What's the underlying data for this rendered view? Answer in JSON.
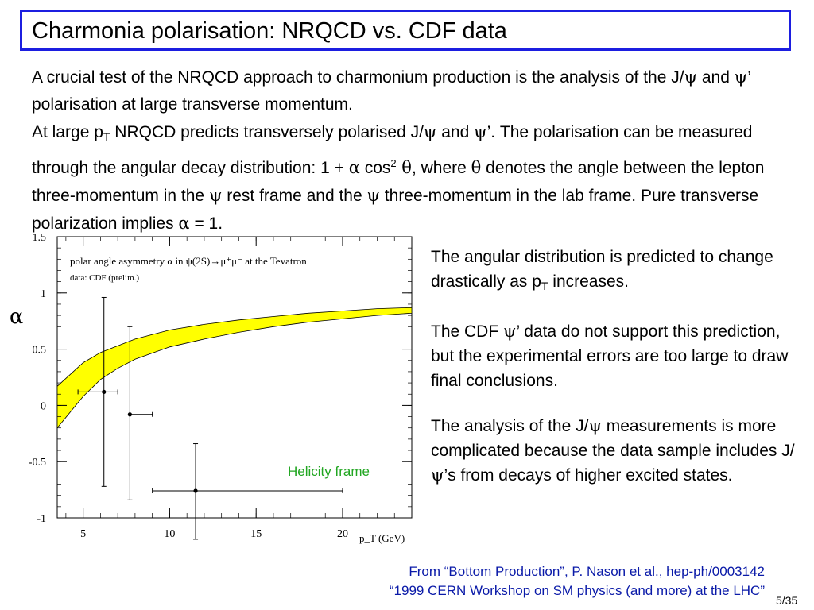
{
  "slide": {
    "title": "Charmonia polarisation: NRQCD vs. CDF data",
    "page_number": "5/35"
  },
  "intro": {
    "p1_a": "A crucial test of the NRQCD approach to charmonium production is the analysis of the J/",
    "p1_psi": "ψ",
    "p1_b": " and ",
    "p1_psi2": "ψ",
    "p1_c": "’ polarisation at large transverse momentum.",
    "p2_a": "At large p",
    "p2_sub": "T",
    "p2_b": " NRQCD predicts transversely polarised J/",
    "p2_psi": "ψ",
    "p2_c": " and ",
    "p2_psi2": "ψ",
    "p2_d": "’. The polarisation can be measured through the angular decay distribution: 1 + ",
    "p2_alpha": "α",
    "p2_e": " cos",
    "p2_sup": "2",
    "p2_theta": " θ",
    "p2_f": ", where ",
    "p2_theta2": "θ",
    "p2_g": " denotes the angle between the lepton three-momentum in the ",
    "p2_psi3": "ψ",
    "p2_h": " rest frame and the ",
    "p2_psi4": "ψ",
    "p2_i": " three-momentum in the lab frame. Pure transverse polarization implies ",
    "p2_alpha2": "α",
    "p2_j": " = 1."
  },
  "right_text": {
    "para1_a": "The angular distribution is predicted to change drastically as p",
    "para1_sub": "T",
    "para1_b": " increases.",
    "para2_a": "The CDF ",
    "para2_psi": "ψ",
    "para2_b": "’ data do not support this prediction, but the experimental errors are too large to draw final conclusions.",
    "para3_a": "The analysis of the J/",
    "para3_psi": "ψ",
    "para3_b": " measurements is more complicated because the data sample includes J/",
    "para3_psi2": "ψ",
    "para3_c": "’s from decays of higher excited states."
  },
  "credits": {
    "line1": "From “Bottom Production”, P. Nason et al., hep-ph/0003142",
    "line2": "“1999 CERN Workshop on SM physics (and more) at the LHC”"
  },
  "chart_data": {
    "type": "line",
    "title": "polar angle asymmetry α in ψ(2S)→μ⁺μ⁻ at the Tevatron",
    "subtitle": "data: CDF (prelim.)",
    "xlabel": "p_T (GeV)",
    "ylabel": "α",
    "xlim": [
      3.5,
      24
    ],
    "ylim": [
      -1.0,
      1.5
    ],
    "xticks": [
      5,
      10,
      15,
      20
    ],
    "yticks": [
      1.5,
      1,
      0.5,
      0,
      -0.5,
      -1
    ],
    "ytick_labels": [
      "1.5",
      "1",
      "0.5",
      "0",
      "-0.5",
      "-1"
    ],
    "xtick_labels": [
      "5",
      "10",
      "15",
      "20"
    ],
    "annotation": "Helicity frame",
    "annotation_color": "#21a621",
    "band_color": "#ffff00",
    "band": {
      "x": [
        3.5,
        5,
        6,
        7,
        8,
        10,
        12,
        14,
        16,
        18,
        20,
        22,
        24
      ],
      "upper": [
        0.17,
        0.38,
        0.47,
        0.53,
        0.59,
        0.67,
        0.72,
        0.76,
        0.79,
        0.82,
        0.84,
        0.86,
        0.87
      ],
      "lower": [
        -0.2,
        0.08,
        0.23,
        0.33,
        0.41,
        0.52,
        0.59,
        0.65,
        0.7,
        0.74,
        0.77,
        0.8,
        0.82
      ]
    },
    "series": [
      {
        "x": [
          6.2,
          7.7,
          11.5
        ],
        "y": [
          0.12,
          -0.08,
          -0.76
        ],
        "xerr_low": [
          1.5,
          0.0,
          2.5
        ],
        "xerr_high": [
          0.8,
          1.3,
          8.5
        ],
        "yerr_low": [
          0.84,
          0.76,
          0.43
        ],
        "yerr_high": [
          0.84,
          0.78,
          0.42
        ]
      }
    ]
  }
}
